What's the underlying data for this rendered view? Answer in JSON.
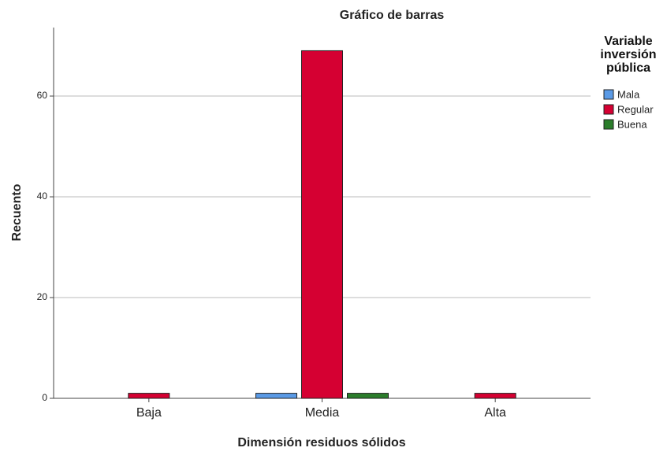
{
  "chart_data": {
    "type": "bar",
    "title": "Gráfico de barras",
    "x_label": "Dimensión residuos sólidos",
    "y_label": "Recuento",
    "legend_title": "Variable inversión pública",
    "categories": [
      "Baja",
      "Media",
      "Alta"
    ],
    "series": [
      {
        "name": "Mala",
        "color": "#5a9ae6",
        "values": [
          0,
          1,
          0
        ]
      },
      {
        "name": "Regular",
        "color": "#d50032",
        "values": [
          1,
          69,
          1
        ]
      },
      {
        "name": "Buena",
        "color": "#2b7d2b",
        "values": [
          0,
          1,
          0
        ]
      }
    ],
    "ylim": [
      0,
      73.6
    ],
    "yticks": [
      0,
      20,
      40,
      60
    ],
    "grid": true,
    "legend": "right"
  }
}
